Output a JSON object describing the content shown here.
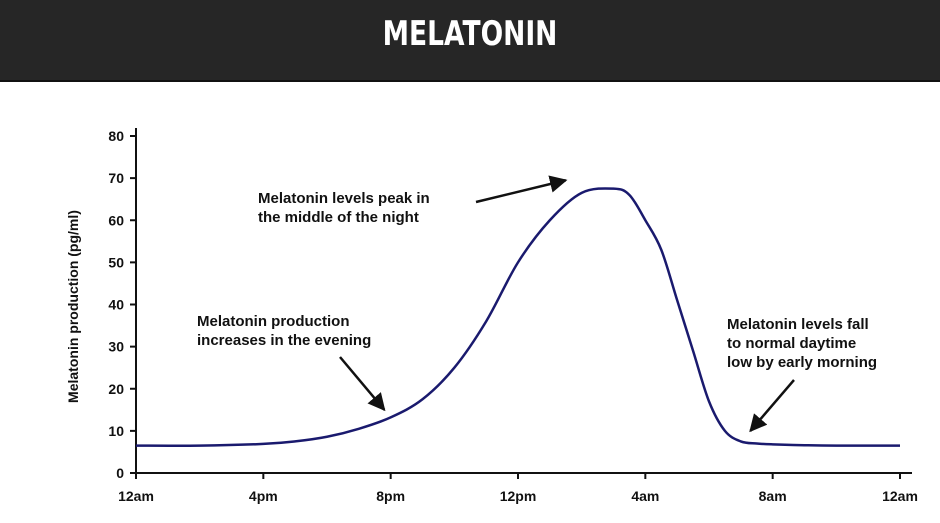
{
  "header": {
    "title": "MELATONIN"
  },
  "colors": {
    "header_bg": "#262626",
    "curve": "#1a1a6e",
    "axis": "#111111",
    "text": "#111111"
  },
  "chart_data": {
    "type": "line",
    "ylabel": "Melatonin production (pg/ml)",
    "xlabel": "",
    "ylim": [
      0,
      80
    ],
    "yticks": [
      0,
      10,
      20,
      30,
      40,
      50,
      60,
      70,
      80
    ],
    "xlim": [
      0,
      24
    ],
    "xticks": [
      {
        "value": 0,
        "label": "12am"
      },
      {
        "value": 4,
        "label": "4pm"
      },
      {
        "value": 8,
        "label": "8pm"
      },
      {
        "value": 12,
        "label": "12pm"
      },
      {
        "value": 16,
        "label": "4am"
      },
      {
        "value": 20,
        "label": "8am"
      },
      {
        "value": 24,
        "label": "12am"
      }
    ],
    "grid": false,
    "series": [
      {
        "x": [
          0,
          2,
          4,
          5,
          6,
          7,
          8,
          9,
          10,
          11,
          12,
          13,
          14,
          15,
          15.5,
          16,
          16.5,
          17,
          17.5,
          18,
          18.5,
          19,
          19.5,
          20,
          21,
          22,
          24
        ],
        "y": [
          6.5,
          6.5,
          6.9,
          7.5,
          8.6,
          10.5,
          13.2,
          17.5,
          25,
          36,
          50,
          60,
          66.5,
          67.5,
          66,
          60,
          53,
          41,
          29,
          17,
          10,
          7.5,
          7,
          6.8,
          6.6,
          6.5,
          6.5
        ]
      }
    ],
    "annotations": [
      {
        "lines": [
          "Melatonin levels peak in",
          "the middle of the night"
        ],
        "arrow_to": {
          "x": 13.5,
          "y": 69.5
        }
      },
      {
        "lines": [
          "Melatonin production",
          "increases in the evening"
        ],
        "arrow_to": {
          "x": 7.8,
          "y": 15
        }
      },
      {
        "lines": [
          "Melatonin levels fall",
          "to normal daytime",
          "low by early morning"
        ],
        "arrow_to": {
          "x": 19.3,
          "y": 10
        }
      }
    ]
  }
}
